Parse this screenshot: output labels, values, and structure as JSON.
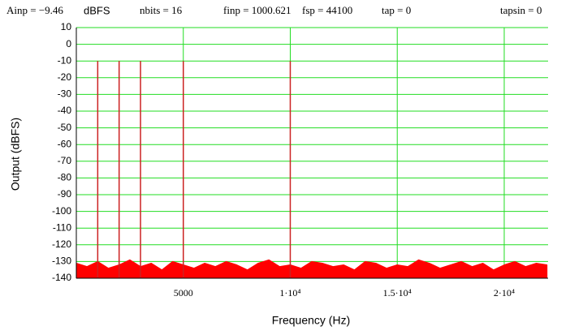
{
  "chart_data": {
    "type": "stem",
    "header": [
      "Ainp = −9.46",
      "dBFS",
      "nbits = 16",
      "finp = 1000.621",
      "fsp = 44100",
      "tap = 0",
      "tapsin = 0"
    ],
    "xlabel": "Frequency (Hz)",
    "ylabel": "Output (dBFS)",
    "xlim": [
      0,
      22050
    ],
    "ylim": [
      -140,
      10
    ],
    "xticks": [
      5000,
      {
        "value": 10000,
        "label": "1·10⁴"
      },
      {
        "value": 15000,
        "label": "1.5·10⁴"
      },
      {
        "value": 20000,
        "label": "2·10⁴"
      }
    ],
    "yticks": [
      10,
      0,
      -10,
      -20,
      -30,
      -40,
      -50,
      -60,
      -70,
      -80,
      -90,
      -100,
      -110,
      -120,
      -130,
      -140
    ],
    "grid": true,
    "grid_color": "#22dd22",
    "series": [
      {
        "type": "area",
        "color": "#ff0000",
        "x": [
          0,
          500,
          1000,
          1500,
          2000,
          2500,
          3000,
          3500,
          4000,
          4500,
          5000,
          5500,
          6000,
          6500,
          7000,
          7500,
          8000,
          8500,
          9000,
          9500,
          10000,
          10500,
          11000,
          11500,
          12000,
          12500,
          13000,
          13500,
          14000,
          14500,
          15000,
          15500,
          16000,
          16500,
          17000,
          17500,
          18000,
          18500,
          19000,
          19500,
          20000,
          20500,
          21000,
          21500,
          22000
        ],
        "values": [
          -131,
          -133,
          -130,
          -134,
          -132,
          -129,
          -133,
          -131,
          -135,
          -130,
          -132,
          -134,
          -131,
          -133,
          -130,
          -132,
          -135,
          -131,
          -129,
          -133,
          -132,
          -134,
          -130,
          -131,
          -133,
          -132,
          -135,
          -130,
          -131,
          -134,
          -132,
          -133,
          -129,
          -131,
          -134,
          -132,
          -130,
          -133,
          -131,
          -135,
          -132,
          -130,
          -133,
          -131,
          -132
        ]
      },
      {
        "type": "stem",
        "color": "#cc2222",
        "x": [
          1000,
          2000,
          3000,
          5000,
          10000
        ],
        "values": [
          -10,
          -10,
          -10,
          -10,
          -10
        ]
      }
    ]
  }
}
